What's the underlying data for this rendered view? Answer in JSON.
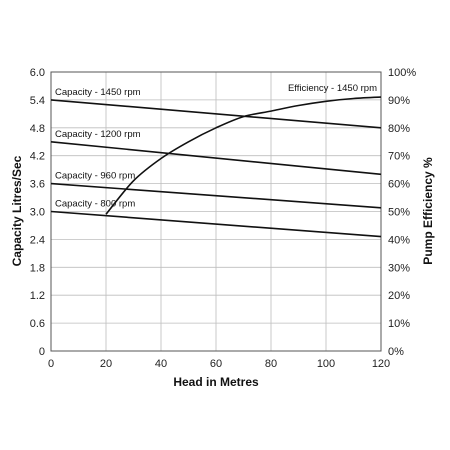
{
  "chart_data": {
    "type": "line",
    "xlabel": "Head in Metres",
    "ylabel": "Capacity Litres/Sec",
    "y2label": "Pump Efficiency %",
    "xlim": [
      0,
      120
    ],
    "ylim": [
      0,
      6.0
    ],
    "y2lim": [
      0,
      100
    ],
    "x_ticks": [
      "0",
      "20",
      "40",
      "60",
      "80",
      "100",
      "120"
    ],
    "y_ticks": [
      "0",
      "0.6",
      "1.2",
      "1.8",
      "2.4",
      "3.0",
      "3.6",
      "4.2",
      "4.8",
      "5.4",
      "6.0"
    ],
    "y2_ticks": [
      "0%",
      "10%",
      "20%",
      "30%",
      "40%",
      "50%",
      "60%",
      "70%",
      "80%",
      "90%",
      "100%"
    ],
    "grid": true,
    "series": [
      {
        "name": "Capacity - 1450 rpm",
        "axis": "left",
        "x": [
          0,
          120
        ],
        "values": [
          5.4,
          4.8
        ]
      },
      {
        "name": "Capacity - 1200 rpm",
        "axis": "left",
        "x": [
          0,
          120
        ],
        "values": [
          4.5,
          3.8
        ]
      },
      {
        "name": "Capacity - 960 rpm",
        "axis": "left",
        "x": [
          0,
          120
        ],
        "values": [
          3.6,
          3.08
        ]
      },
      {
        "name": "Capacity - 800 rpm",
        "axis": "left",
        "x": [
          0,
          120
        ],
        "values": [
          3.0,
          2.46
        ]
      },
      {
        "name": "Efficiency - 1450 rpm",
        "axis": "right",
        "x": [
          20,
          30,
          40,
          50,
          60,
          70,
          80,
          90,
          100,
          110,
          120
        ],
        "values": [
          49,
          61,
          69,
          75,
          80,
          84,
          86,
          88,
          89.5,
          90.5,
          91
        ]
      }
    ]
  }
}
